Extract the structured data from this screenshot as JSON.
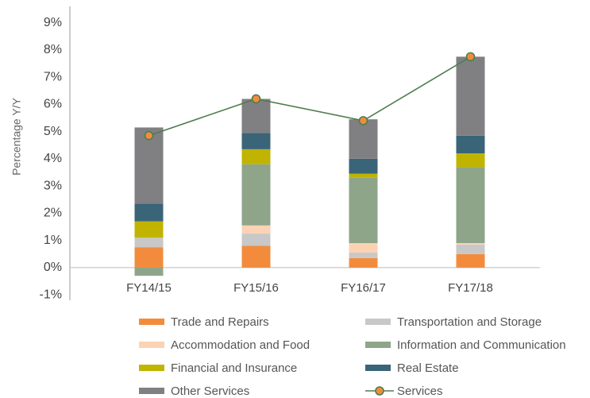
{
  "chart_data": {
    "type": "bar",
    "stacked": true,
    "y_label": "Percentage Y/Y",
    "categories": [
      "FY14/15",
      "FY15/16",
      "FY16/17",
      "FY17/18"
    ],
    "series": [
      {
        "name": "Trade and Repairs",
        "color": "#f28c3c",
        "values": [
          0.75,
          0.8,
          0.35,
          0.5
        ]
      },
      {
        "name": "Transportation and Storage",
        "color": "#c8c8c8",
        "values": [
          0.35,
          0.45,
          0.2,
          0.35
        ]
      },
      {
        "name": "Accommodation and Food",
        "color": "#fbd3b4",
        "values": [
          0,
          0.3,
          0.35,
          0.05
        ]
      },
      {
        "name": "Information and Communication",
        "color": "#8fa58a",
        "values": [
          -0.3,
          2.25,
          2.4,
          2.8
        ]
      },
      {
        "name": "Financial and Insurance",
        "color": "#c0b400",
        "values": [
          0.6,
          0.55,
          0.15,
          0.5
        ]
      },
      {
        "name": "Real Estate",
        "color": "#3a6478",
        "values": [
          0.65,
          0.6,
          0.55,
          0.65
        ]
      },
      {
        "name": "Other Services",
        "color": "#808083",
        "values": [
          2.8,
          1.25,
          1.45,
          2.9
        ]
      },
      {
        "name": "Services",
        "color": "#4e7d4e",
        "marker_color": "#f28c3c",
        "type": "line",
        "values": [
          4.85,
          6.2,
          5.4,
          7.75
        ]
      }
    ],
    "ylim": [
      -1.2,
      9.6
    ],
    "yticks": [
      {
        "value": -1,
        "label": "-1%"
      },
      {
        "value": 0,
        "label": "0%"
      },
      {
        "value": 1,
        "label": "1%"
      },
      {
        "value": 2,
        "label": "2%"
      },
      {
        "value": 3,
        "label": "3%"
      },
      {
        "value": 4,
        "label": "4%"
      },
      {
        "value": 5,
        "label": "5%"
      },
      {
        "value": 6,
        "label": "6%"
      },
      {
        "value": 7,
        "label": "7%"
      },
      {
        "value": 8,
        "label": "8%"
      },
      {
        "value": 9,
        "label": "9%"
      }
    ],
    "grid": false,
    "legend": "bottom"
  }
}
